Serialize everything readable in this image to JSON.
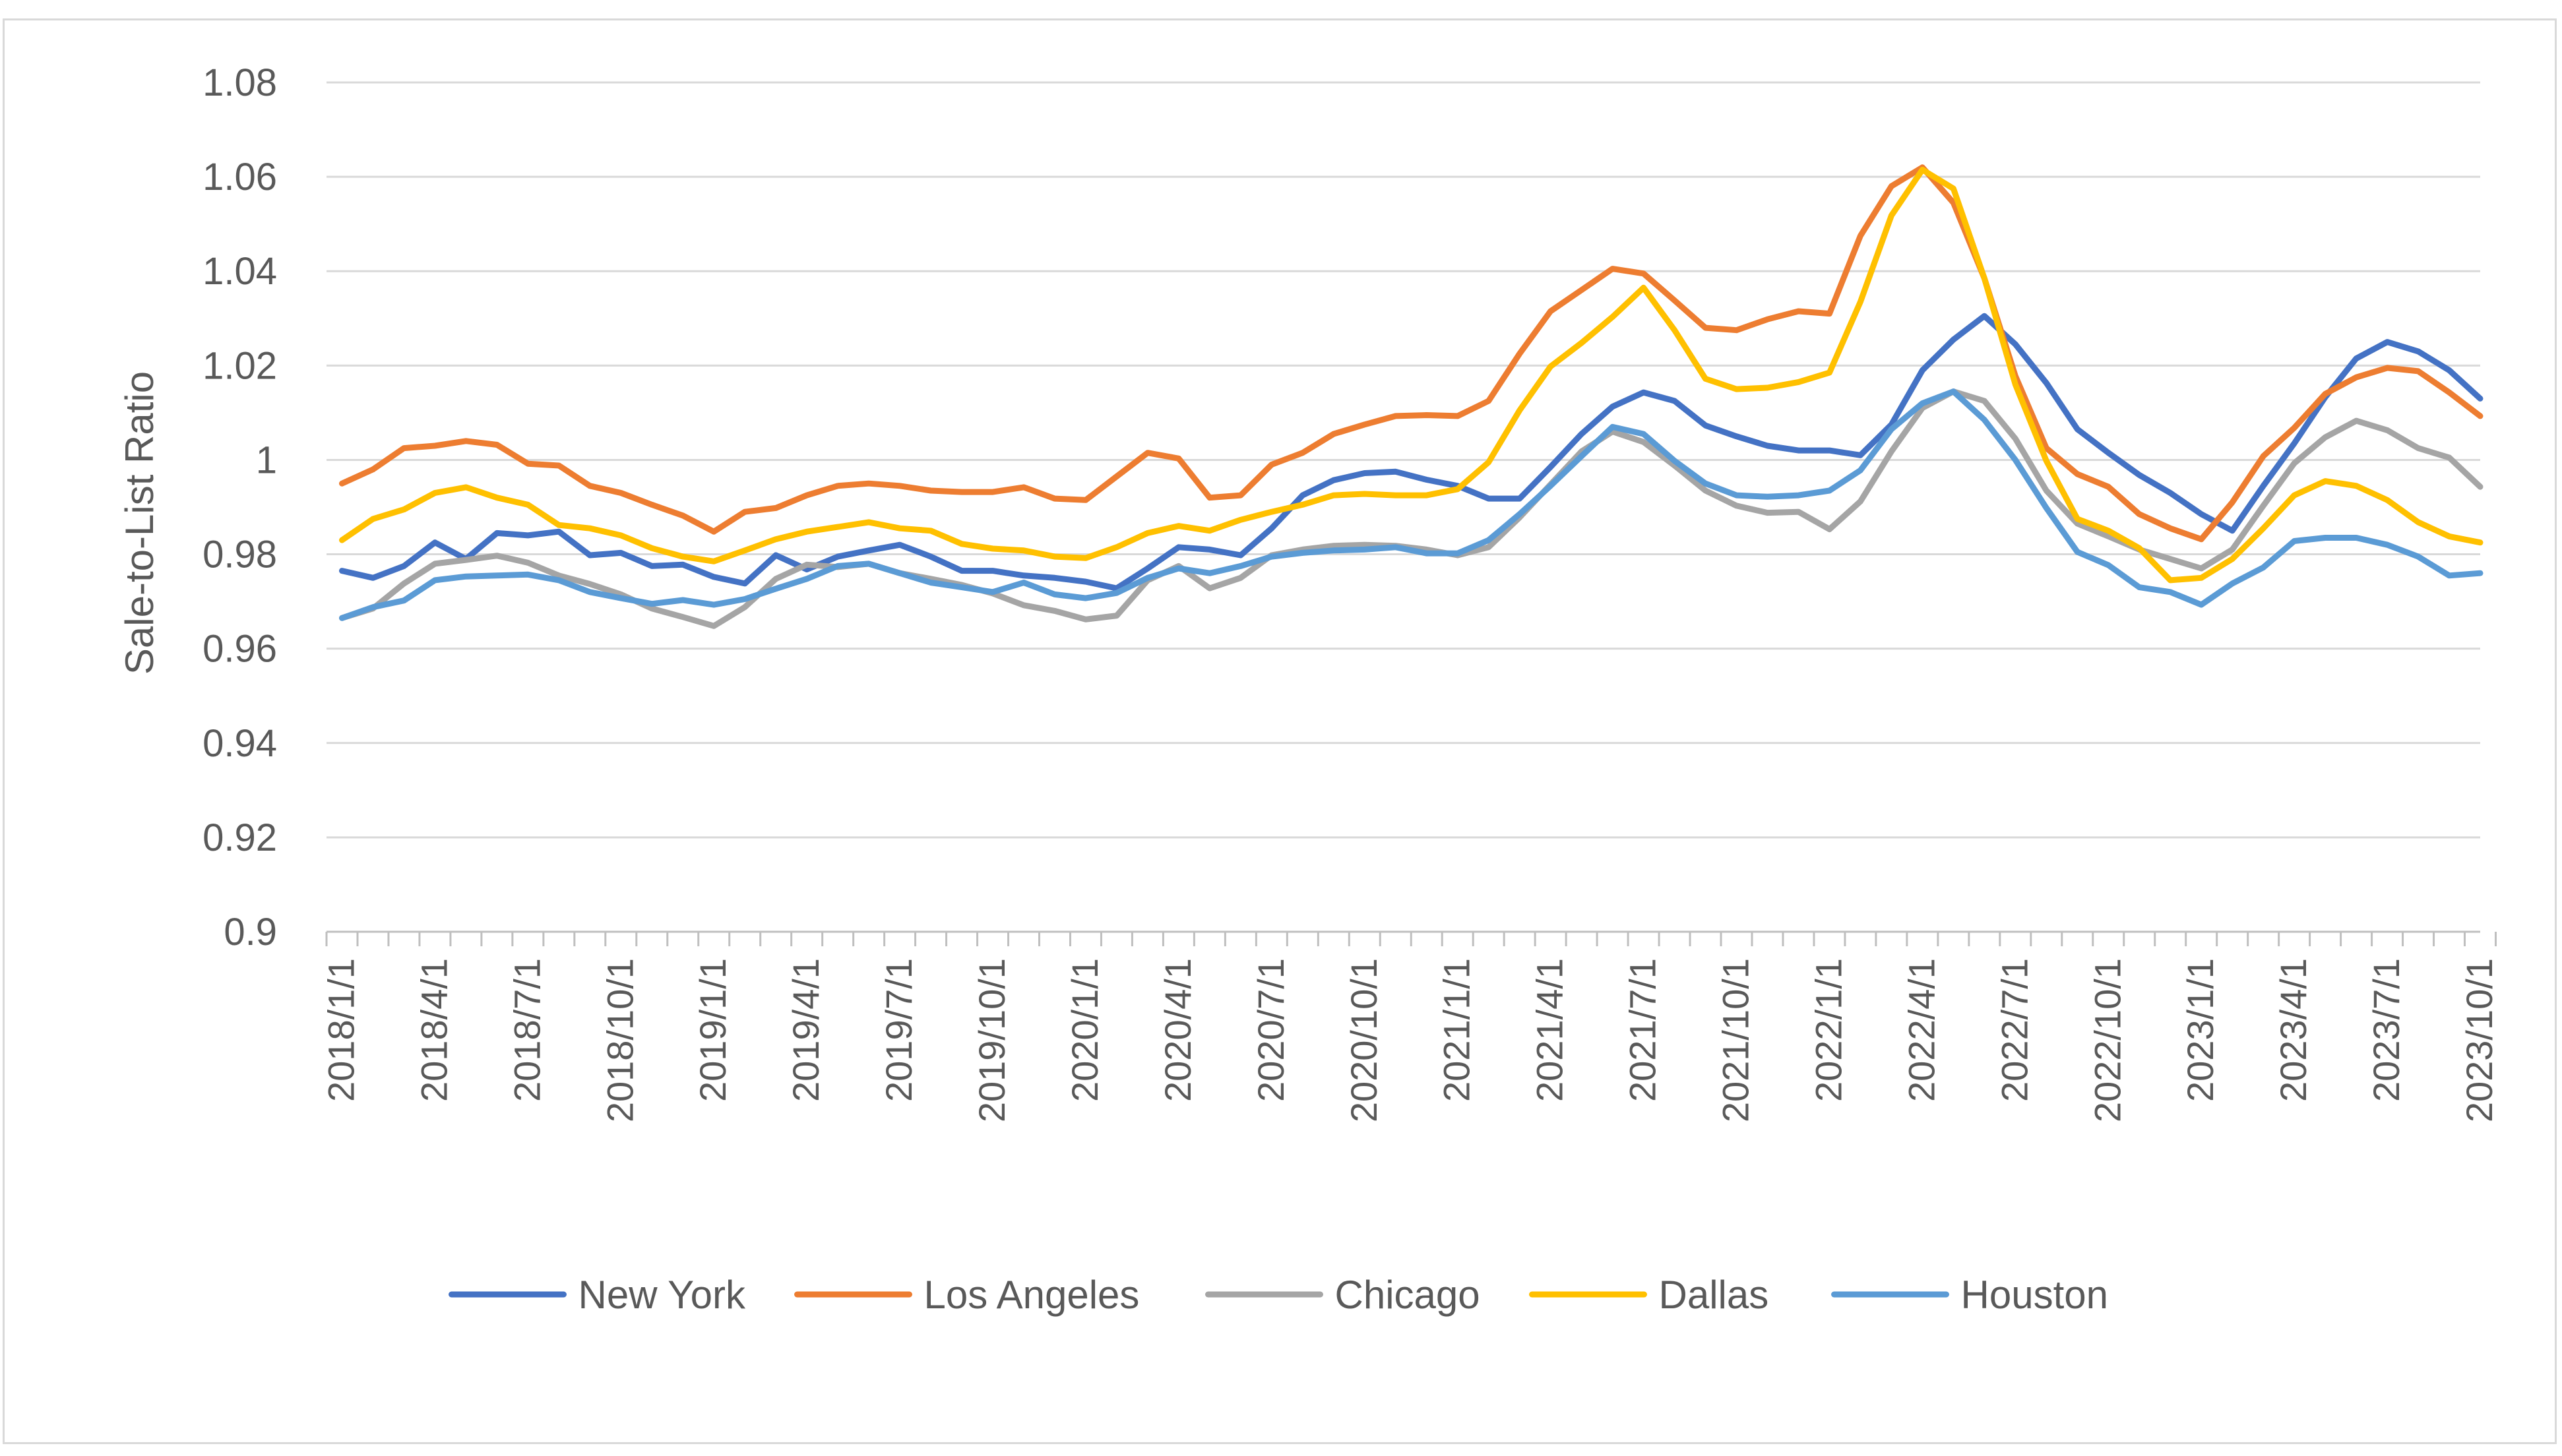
{
  "chart_data": {
    "type": "line",
    "title": "",
    "xlabel": "",
    "ylabel": "Sale-to-List Ratio",
    "ylim": [
      0.9,
      1.08
    ],
    "yticks": [
      0.9,
      0.92,
      0.94,
      0.96,
      0.98,
      1,
      1.02,
      1.04,
      1.06,
      1.08
    ],
    "ytick_labels": [
      "0.9",
      "0.92",
      "0.94",
      "0.96",
      "0.98",
      "1",
      "1.02",
      "1.04",
      "1.06",
      "1.08"
    ],
    "grid": true,
    "legend_position": "bottom",
    "x_start": "2018/1/1",
    "x_frequency": "monthly",
    "x_tick_labels": [
      "2018/1/1",
      "2018/4/1",
      "2018/7/1",
      "2018/10/1",
      "2019/1/1",
      "2019/4/1",
      "2019/7/1",
      "2019/10/1",
      "2020/1/1",
      "2020/4/1",
      "2020/7/1",
      "2020/10/1",
      "2021/1/1",
      "2021/4/1",
      "2021/7/1",
      "2021/10/1",
      "2022/1/1",
      "2022/4/1",
      "2022/7/1",
      "2022/10/1",
      "2023/1/1",
      "2023/4/1",
      "2023/7/1",
      "2023/10/1"
    ],
    "x_tick_every": 3,
    "series": [
      {
        "name": "New York",
        "color": "#4472C4",
        "values": [
          0.9765,
          0.975,
          0.9775,
          0.9825,
          0.979,
          0.9845,
          0.984,
          0.9848,
          0.9798,
          0.9803,
          0.9775,
          0.9778,
          0.9752,
          0.9738,
          0.9798,
          0.9768,
          0.9795,
          0.9808,
          0.982,
          0.9795,
          0.9765,
          0.9765,
          0.9755,
          0.975,
          0.9742,
          0.9728,
          0.977,
          0.9815,
          0.981,
          0.9798,
          0.9855,
          0.9925,
          0.9957,
          0.9972,
          0.9975,
          0.9958,
          0.9945,
          0.9918,
          0.9918,
          0.9985,
          1.0055,
          1.0113,
          1.0143,
          1.0125,
          1.0073,
          1.005,
          1.003,
          1.002,
          1.002,
          1.001,
          1.0075,
          1.019,
          1.0255,
          1.0305,
          1.0245,
          1.0163,
          1.0065,
          1.0015,
          0.9968,
          0.993,
          0.9885,
          0.985,
          0.9945,
          1.0035,
          1.0133,
          1.0215,
          1.025,
          1.023,
          1.019,
          1.013
        ]
      },
      {
        "name": "Los Angeles",
        "color": "#ED7D31",
        "values": [
          0.995,
          0.998,
          1.0025,
          1.003,
          1.004,
          1.0032,
          0.9992,
          0.9988,
          0.9945,
          0.993,
          0.9905,
          0.9882,
          0.9848,
          0.989,
          0.9898,
          0.9925,
          0.9945,
          0.995,
          0.9945,
          0.9935,
          0.9932,
          0.9932,
          0.9942,
          0.9918,
          0.9915,
          0.9965,
          1.0015,
          1.0003,
          0.992,
          0.9925,
          0.999,
          1.0015,
          1.0055,
          1.0075,
          1.0093,
          1.0095,
          1.0093,
          1.0125,
          1.0225,
          1.0315,
          1.036,
          1.0405,
          1.0395,
          1.0338,
          1.028,
          1.0275,
          1.0298,
          1.0315,
          1.031,
          1.0475,
          1.058,
          1.062,
          1.0545,
          1.0385,
          1.0178,
          1.0025,
          0.997,
          0.9943,
          0.9885,
          0.9855,
          0.9832,
          0.991,
          1.0008,
          1.0068,
          1.014,
          1.0175,
          1.0195,
          1.0188,
          1.0143,
          1.0093
        ]
      },
      {
        "name": "Chicago",
        "color": "#A5A5A5",
        "values": [
          0.9665,
          0.9685,
          0.9738,
          0.978,
          0.9788,
          0.9797,
          0.9782,
          0.9755,
          0.9737,
          0.9715,
          0.9685,
          0.9667,
          0.9648,
          0.9688,
          0.9748,
          0.9778,
          0.9773,
          0.978,
          0.976,
          0.9748,
          0.9735,
          0.9717,
          0.9692,
          0.968,
          0.9662,
          0.967,
          0.9745,
          0.9775,
          0.9728,
          0.975,
          0.9798,
          0.981,
          0.9818,
          0.982,
          0.9818,
          0.981,
          0.9798,
          0.9815,
          0.9878,
          0.9948,
          1.0018,
          1.006,
          1.0038,
          0.9988,
          0.9935,
          0.9903,
          0.9888,
          0.989,
          0.9853,
          0.9912,
          1.0018,
          1.011,
          1.0145,
          1.0125,
          1.0045,
          0.9935,
          0.9865,
          0.9838,
          0.981,
          0.979,
          0.977,
          0.981,
          0.9903,
          0.9993,
          1.0048,
          1.0083,
          1.0063,
          1.0025,
          1.0005,
          0.9943
        ]
      },
      {
        "name": "Dallas",
        "color": "#FFC000",
        "values": [
          0.983,
          0.9875,
          0.9895,
          0.993,
          0.9942,
          0.992,
          0.9905,
          0.9862,
          0.9855,
          0.984,
          0.9813,
          0.9795,
          0.9785,
          0.9808,
          0.9832,
          0.9848,
          0.9858,
          0.9868,
          0.9855,
          0.985,
          0.9822,
          0.9812,
          0.9808,
          0.9795,
          0.9792,
          0.9815,
          0.9845,
          0.986,
          0.985,
          0.9873,
          0.989,
          0.9905,
          0.9925,
          0.9928,
          0.9925,
          0.9925,
          0.9938,
          0.9995,
          1.0105,
          1.0198,
          1.0248,
          1.0303,
          1.0365,
          1.0275,
          1.0172,
          1.015,
          1.0153,
          1.0165,
          1.0185,
          1.0335,
          1.0518,
          1.0615,
          1.0575,
          1.0385,
          1.016,
          0.9998,
          0.9875,
          0.985,
          0.9813,
          0.9745,
          0.975,
          0.979,
          0.9855,
          0.9925,
          0.9955,
          0.9945,
          0.9915,
          0.9868,
          0.9838,
          0.9825
        ]
      },
      {
        "name": "Houston",
        "color": "#5B9BD5",
        "values": [
          0.9665,
          0.9688,
          0.9702,
          0.9745,
          0.9753,
          0.9755,
          0.9757,
          0.9745,
          0.972,
          0.9707,
          0.9695,
          0.9703,
          0.9693,
          0.9705,
          0.9727,
          0.9748,
          0.9775,
          0.978,
          0.976,
          0.974,
          0.973,
          0.972,
          0.974,
          0.9715,
          0.9707,
          0.9718,
          0.975,
          0.977,
          0.976,
          0.9775,
          0.9795,
          0.9803,
          0.9808,
          0.981,
          0.9815,
          0.9802,
          0.9802,
          0.983,
          0.9885,
          0.9945,
          1.0008,
          1.007,
          1.0055,
          0.9998,
          0.995,
          0.9925,
          0.9922,
          0.9925,
          0.9935,
          0.9978,
          1.0065,
          1.012,
          1.0145,
          1.0085,
          1.0,
          0.9898,
          0.9805,
          0.9777,
          0.973,
          0.972,
          0.9693,
          0.9738,
          0.9772,
          0.9828,
          0.9835,
          0.9835,
          0.982,
          0.9795,
          0.9755,
          0.976
        ]
      }
    ]
  }
}
